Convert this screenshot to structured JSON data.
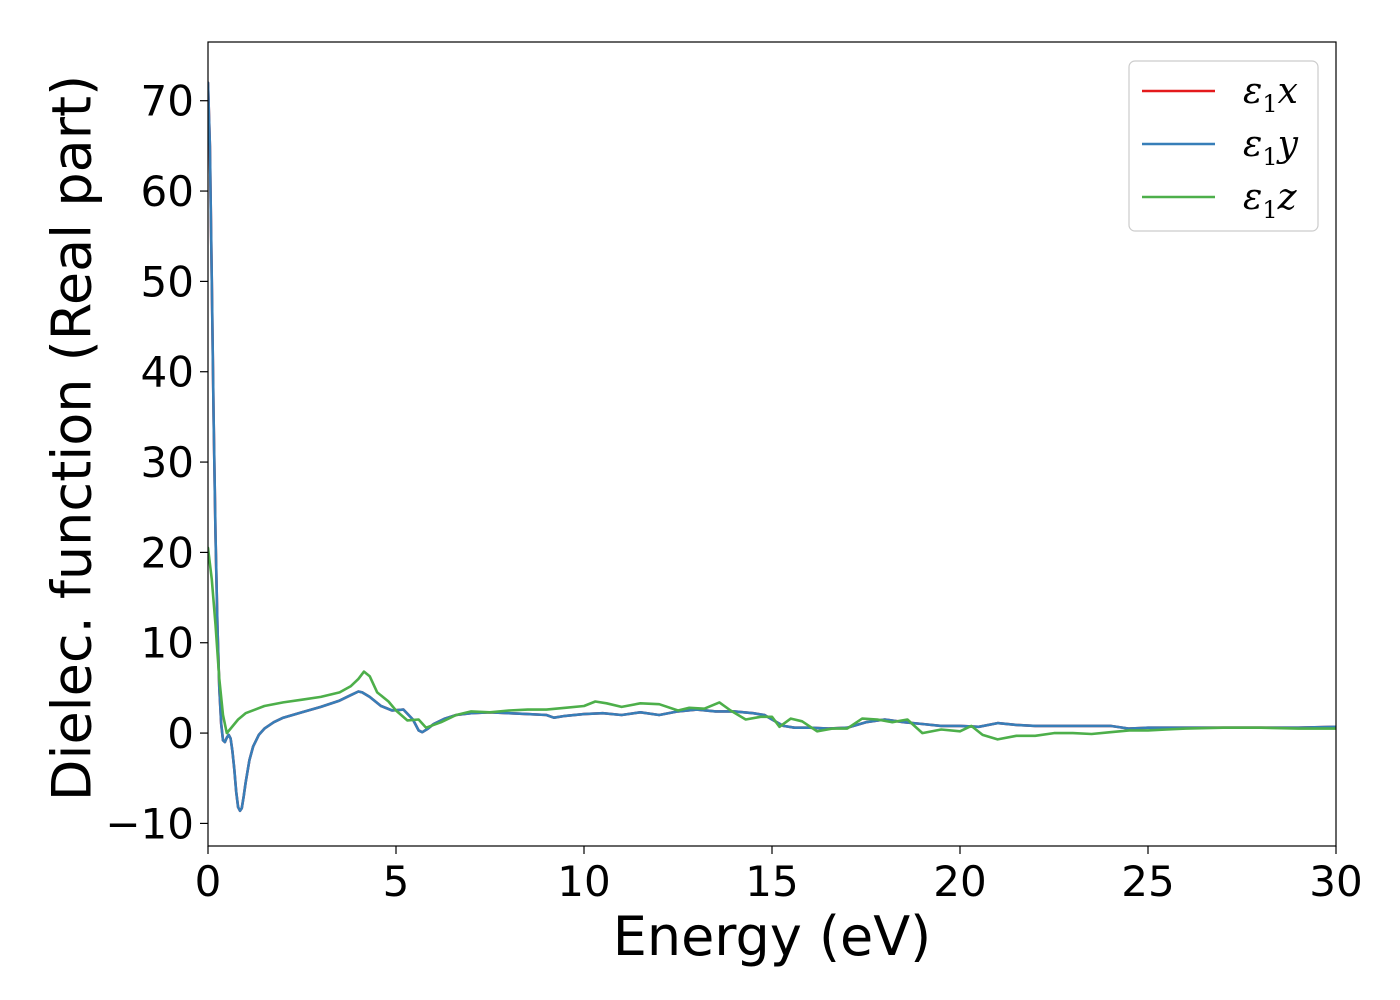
{
  "chart_data": {
    "type": "line",
    "title": "",
    "xlabel": "Energy (eV)",
    "ylabel": "Dielec. function (Real part)",
    "xlim": [
      0,
      30
    ],
    "ylim": [
      -12.5,
      76.5
    ],
    "xticks": [
      0,
      5,
      10,
      15,
      20,
      25,
      30
    ],
    "yticks": [
      -10,
      0,
      10,
      20,
      30,
      40,
      50,
      60,
      70
    ],
    "xtick_labels": [
      "0",
      "5",
      "10",
      "15",
      "20",
      "25",
      "30"
    ],
    "ytick_labels": [
      "−10",
      "0",
      "10",
      "20",
      "30",
      "40",
      "50",
      "60",
      "70"
    ],
    "grid": false,
    "legend_position": "top-right",
    "series": [
      {
        "name": "ε₁x",
        "legend_base": "ε",
        "legend_sub": "1",
        "legend_var": "x",
        "color": "#e41a1c",
        "x": [
          0,
          0.05,
          0.1,
          0.15,
          0.2,
          0.25,
          0.3,
          0.35,
          0.4,
          0.45,
          0.5,
          0.55,
          0.6,
          0.65,
          0.7,
          0.75,
          0.8,
          0.85,
          0.9,
          0.95,
          1.0,
          1.1,
          1.2,
          1.35,
          1.5,
          1.75,
          2.0,
          2.5,
          3.0,
          3.5,
          3.8,
          4.0,
          4.1,
          4.3,
          4.6,
          4.9,
          5.2,
          5.45,
          5.6,
          5.7,
          5.85,
          6.0,
          6.3,
          6.6,
          7.0,
          7.5,
          8.0,
          8.5,
          9.0,
          9.2,
          9.5,
          10.0,
          10.5,
          11.0,
          11.5,
          12.0,
          12.5,
          13.0,
          13.5,
          14.0,
          14.5,
          14.8,
          15.0,
          15.3,
          15.6,
          16.0,
          16.5,
          17.0,
          17.5,
          18.0,
          18.5,
          19.0,
          19.5,
          20.0,
          20.5,
          21.0,
          21.5,
          22.0,
          22.5,
          23.0,
          23.5,
          24.0,
          24.5,
          25.0,
          25.5,
          26.0,
          27.0,
          28.0,
          29.0,
          30.0
        ],
        "values": [
          72.0,
          65.0,
          50.0,
          35.0,
          22.0,
          12.0,
          5.0,
          1.0,
          -0.8,
          -1.0,
          -0.5,
          -0.2,
          -0.6,
          -2.0,
          -4.0,
          -6.5,
          -8.2,
          -8.6,
          -8.3,
          -7.0,
          -5.5,
          -3.0,
          -1.5,
          -0.2,
          0.5,
          1.2,
          1.7,
          2.3,
          2.9,
          3.6,
          4.2,
          4.6,
          4.5,
          4.0,
          3.0,
          2.5,
          2.6,
          1.5,
          0.3,
          0.1,
          0.5,
          1.0,
          1.6,
          2.0,
          2.2,
          2.3,
          2.2,
          2.1,
          2.0,
          1.7,
          1.9,
          2.1,
          2.2,
          2.0,
          2.3,
          2.0,
          2.4,
          2.6,
          2.4,
          2.4,
          2.2,
          2.0,
          1.5,
          0.8,
          0.6,
          0.6,
          0.5,
          0.6,
          1.2,
          1.5,
          1.2,
          1.0,
          0.8,
          0.8,
          0.7,
          1.1,
          0.9,
          0.8,
          0.8,
          0.8,
          0.8,
          0.8,
          0.5,
          0.6,
          0.6,
          0.6,
          0.6,
          0.6,
          0.6,
          0.7
        ]
      },
      {
        "name": "ε₁y",
        "legend_base": "ε",
        "legend_sub": "1",
        "legend_var": "y",
        "color": "#377eb8",
        "x": [
          0,
          0.05,
          0.1,
          0.15,
          0.2,
          0.25,
          0.3,
          0.35,
          0.4,
          0.45,
          0.5,
          0.55,
          0.6,
          0.65,
          0.7,
          0.75,
          0.8,
          0.85,
          0.9,
          0.95,
          1.0,
          1.1,
          1.2,
          1.35,
          1.5,
          1.75,
          2.0,
          2.5,
          3.0,
          3.5,
          3.8,
          4.0,
          4.1,
          4.3,
          4.6,
          4.9,
          5.2,
          5.45,
          5.6,
          5.7,
          5.85,
          6.0,
          6.3,
          6.6,
          7.0,
          7.5,
          8.0,
          8.5,
          9.0,
          9.2,
          9.5,
          10.0,
          10.5,
          11.0,
          11.5,
          12.0,
          12.5,
          13.0,
          13.5,
          14.0,
          14.5,
          14.8,
          15.0,
          15.3,
          15.6,
          16.0,
          16.5,
          17.0,
          17.5,
          18.0,
          18.5,
          19.0,
          19.5,
          20.0,
          20.5,
          21.0,
          21.5,
          22.0,
          22.5,
          23.0,
          23.5,
          24.0,
          24.5,
          25.0,
          25.5,
          26.0,
          27.0,
          28.0,
          29.0,
          30.0
        ],
        "values": [
          72.0,
          65.0,
          50.0,
          35.0,
          22.0,
          12.0,
          5.0,
          1.0,
          -0.8,
          -1.0,
          -0.5,
          -0.2,
          -0.6,
          -2.0,
          -4.0,
          -6.5,
          -8.2,
          -8.6,
          -8.3,
          -7.0,
          -5.5,
          -3.0,
          -1.5,
          -0.2,
          0.5,
          1.2,
          1.7,
          2.3,
          2.9,
          3.6,
          4.2,
          4.6,
          4.5,
          4.0,
          3.0,
          2.5,
          2.6,
          1.5,
          0.3,
          0.1,
          0.5,
          1.0,
          1.6,
          2.0,
          2.2,
          2.3,
          2.2,
          2.1,
          2.0,
          1.7,
          1.9,
          2.1,
          2.2,
          2.0,
          2.3,
          2.0,
          2.4,
          2.6,
          2.4,
          2.4,
          2.2,
          2.0,
          1.5,
          0.8,
          0.6,
          0.6,
          0.5,
          0.6,
          1.2,
          1.5,
          1.2,
          1.0,
          0.8,
          0.8,
          0.7,
          1.1,
          0.9,
          0.8,
          0.8,
          0.8,
          0.8,
          0.8,
          0.5,
          0.6,
          0.6,
          0.6,
          0.6,
          0.6,
          0.6,
          0.7
        ]
      },
      {
        "name": "ε₁z",
        "legend_base": "ε",
        "legend_sub": "1",
        "legend_var": "z",
        "color": "#4daf4a",
        "x": [
          0,
          0.1,
          0.2,
          0.3,
          0.4,
          0.5,
          0.6,
          0.8,
          1.0,
          1.5,
          2.0,
          2.5,
          3.0,
          3.5,
          3.8,
          4.0,
          4.15,
          4.3,
          4.5,
          4.8,
          5.0,
          5.3,
          5.6,
          5.8,
          6.2,
          6.6,
          7.0,
          7.5,
          8.0,
          8.5,
          9.0,
          9.5,
          10.0,
          10.3,
          10.6,
          11.0,
          11.5,
          12.0,
          12.5,
          12.8,
          13.2,
          13.6,
          13.9,
          14.3,
          14.7,
          15.0,
          15.2,
          15.5,
          15.8,
          16.2,
          16.6,
          17.0,
          17.4,
          17.8,
          18.2,
          18.6,
          19.0,
          19.5,
          20.0,
          20.3,
          20.6,
          21.0,
          21.5,
          22.0,
          22.5,
          23.0,
          23.5,
          24.0,
          24.5,
          25.0,
          25.5,
          26.0,
          27.0,
          28.0,
          29.0,
          30.0
        ],
        "values": [
          20.5,
          17.0,
          12.0,
          6.0,
          2.0,
          0.0,
          0.5,
          1.5,
          2.2,
          3.0,
          3.4,
          3.7,
          4.0,
          4.5,
          5.2,
          6.0,
          6.8,
          6.3,
          4.5,
          3.5,
          2.5,
          1.4,
          1.5,
          0.6,
          1.2,
          2.0,
          2.4,
          2.3,
          2.5,
          2.6,
          2.6,
          2.8,
          3.0,
          3.5,
          3.3,
          2.9,
          3.3,
          3.2,
          2.5,
          2.8,
          2.7,
          3.4,
          2.5,
          1.5,
          1.8,
          1.8,
          0.7,
          1.6,
          1.3,
          0.2,
          0.5,
          0.5,
          1.6,
          1.5,
          1.2,
          1.5,
          0.0,
          0.4,
          0.2,
          0.8,
          -0.2,
          -0.7,
          -0.3,
          -0.3,
          0.0,
          0.0,
          -0.1,
          0.1,
          0.3,
          0.3,
          0.4,
          0.5,
          0.6,
          0.6,
          0.5,
          0.5
        ]
      }
    ]
  }
}
